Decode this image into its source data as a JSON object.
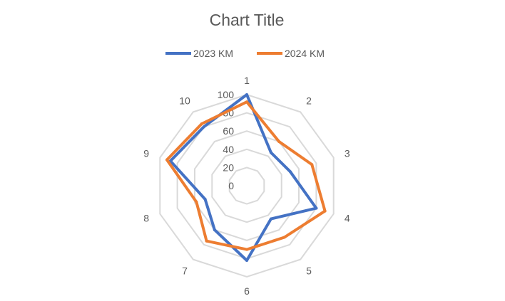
{
  "chart_data": {
    "type": "radar",
    "title": "Chart Title",
    "categories": [
      "1",
      "2",
      "3",
      "4",
      "5",
      "6",
      "7",
      "8",
      "9",
      "10"
    ],
    "rlim": [
      0,
      100
    ],
    "ticks": [
      "0",
      "20",
      "40",
      "60",
      "80",
      "100"
    ],
    "tick_values": [
      0,
      20,
      40,
      60,
      80,
      100
    ],
    "grid": true,
    "legend_position": "top",
    "series": [
      {
        "name": "2023 KM",
        "color": "#4472C4",
        "values": [
          100,
          45,
          50,
          80,
          45,
          82,
          60,
          48,
          88,
          80
        ]
      },
      {
        "name": "2024 KM",
        "color": "#ED7D31",
        "values": [
          92,
          60,
          75,
          90,
          70,
          70,
          75,
          58,
          92,
          84
        ]
      }
    ]
  }
}
